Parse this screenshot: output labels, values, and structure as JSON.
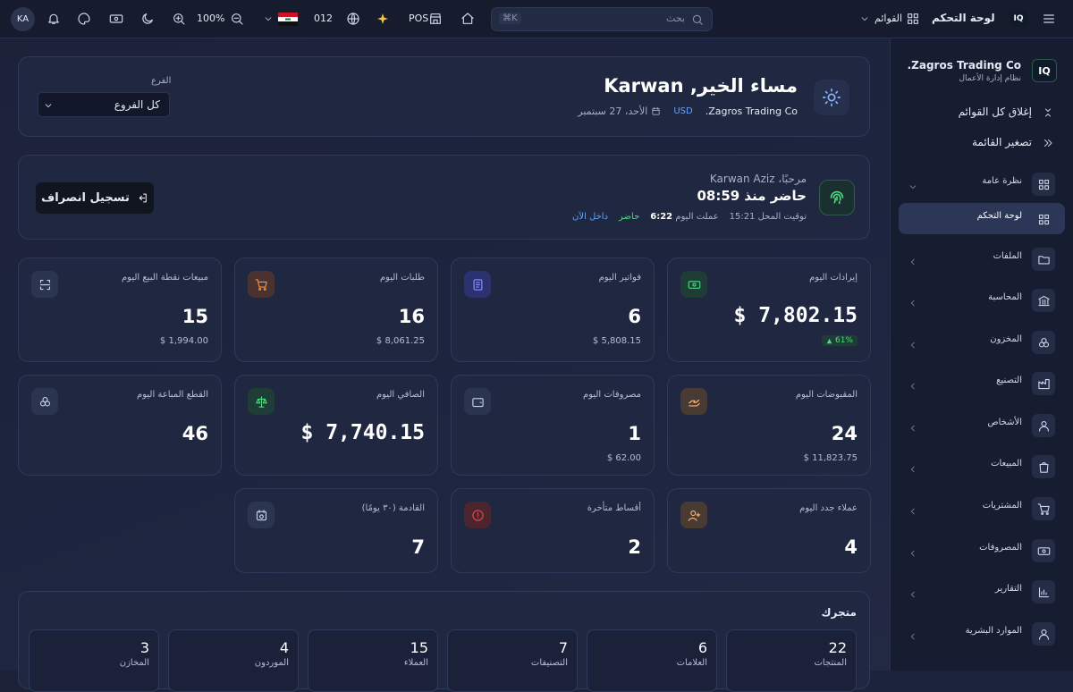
{
  "topbar": {
    "user_initials": "KA",
    "zoom": "100%",
    "code": "012",
    "pos": "POS",
    "search_placeholder": "بحث",
    "search_shortcut": "⌘K",
    "menus": "القوائم",
    "title": "لوحة التحكم",
    "logo": "IQ"
  },
  "sidebar": {
    "logo": "IQ",
    "company": "Zagros Trading Co.",
    "subtitle": "نظام إدارة الأعمال",
    "close_all": "إغلاق كل القوائم",
    "collapse": "تصغير القائمة",
    "items": [
      "نظرة عامة",
      "لوحة التحكم",
      "الملفات",
      "المحاسبة",
      "المخزون",
      "التصنيع",
      "الأشخاص",
      "المبيعات",
      "المشتريات",
      "المصروفات",
      "التقارير",
      "الموارد البشرية"
    ]
  },
  "header": {
    "greeting": "مساء الخير, Karwan",
    "company": "Zagros Trading Co.",
    "currency": "USD",
    "date": "الأحد، 27 سبتمبر",
    "branch_label": "الفرع",
    "branch_value": "كل الفروع"
  },
  "attendance": {
    "welcome": "مرحبًا، Karwan Aziz",
    "present_since": "حاضر منذ 08:59",
    "shop_time_label": "توقيت المحل",
    "shop_time": "15:21",
    "worked_label": "عملت اليوم",
    "worked": "6:22",
    "status": "حاضر",
    "inside": "داخل الآن",
    "checkout": "تسجيل انصراف"
  },
  "stats": [
    [
      {
        "label": "إيرادات اليوم",
        "value": "$ 7,802.15",
        "badge": "61%"
      },
      {
        "label": "فواتير اليوم",
        "value": "6",
        "sub": "$ 5,808.15"
      },
      {
        "label": "طلبات اليوم",
        "value": "16",
        "sub": "$ 8,061.25"
      },
      {
        "label": "مبيعات نقطة البيع اليوم",
        "value": "15",
        "sub": "$ 1,994.00"
      }
    ],
    [
      {
        "label": "المقبوضات اليوم",
        "value": "24",
        "sub": "$ 11,823.75"
      },
      {
        "label": "مصروفات اليوم",
        "value": "1",
        "sub": "$ 62.00"
      },
      {
        "label": "الصافي اليوم",
        "value": "$ 7,740.15"
      },
      {
        "label": "القطع المباعة اليوم",
        "value": "46"
      }
    ],
    [
      {
        "label": "عملاء جدد اليوم",
        "value": "4"
      },
      {
        "label": "أقساط متأخرة",
        "value": "2"
      },
      {
        "label": "القادمة (٣٠ يومًا)",
        "value": "7"
      }
    ]
  ],
  "store": {
    "title": "متجرك",
    "items": [
      {
        "label": "المنتجات",
        "value": "22"
      },
      {
        "label": "العلامات",
        "value": "6"
      },
      {
        "label": "التصنيفات",
        "value": "7"
      },
      {
        "label": "العملاء",
        "value": "15"
      },
      {
        "label": "الموردون",
        "value": "4"
      },
      {
        "label": "المخازن",
        "value": "3"
      }
    ]
  }
}
